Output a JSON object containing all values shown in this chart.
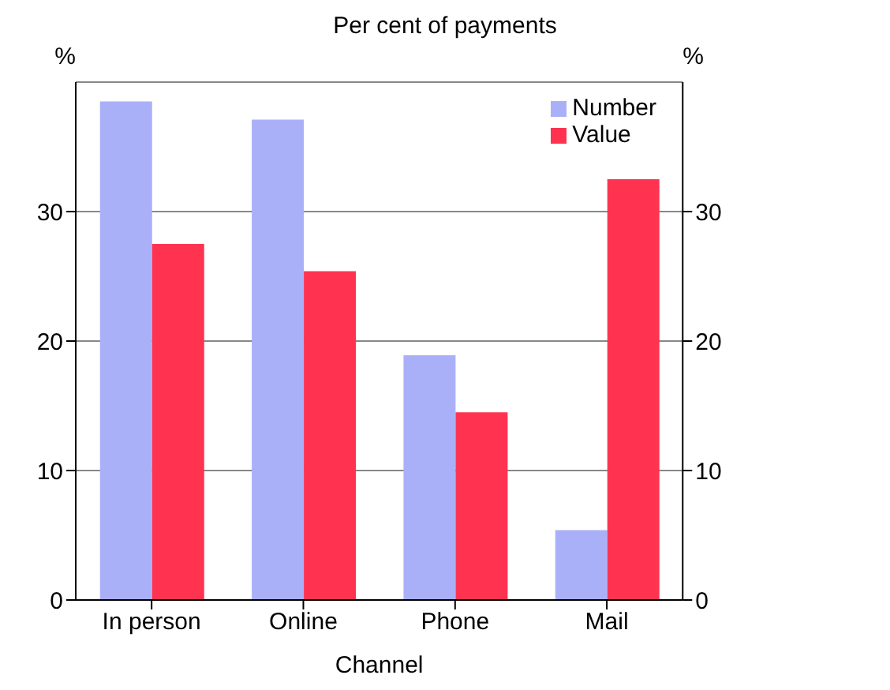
{
  "chart_data": {
    "type": "bar",
    "title": "Per cent of payments",
    "xlabel": "Channel",
    "ylabel": "%",
    "y2label": "%",
    "categories": [
      "In person",
      "Online",
      "Phone",
      "Mail"
    ],
    "series": [
      {
        "name": "Number",
        "color": "#aab0f8",
        "values": [
          38.5,
          37.1,
          18.9,
          5.4
        ]
      },
      {
        "name": "Value",
        "color": "#ff3350",
        "values": [
          27.5,
          25.4,
          14.5,
          32.5
        ]
      }
    ],
    "ylim": [
      0,
      40
    ],
    "yticks": [
      0,
      10,
      20,
      30
    ],
    "y2lim": [
      0,
      40
    ],
    "y2ticks": [
      0,
      10,
      20,
      30
    ],
    "grid": "y",
    "legend": "top right"
  }
}
